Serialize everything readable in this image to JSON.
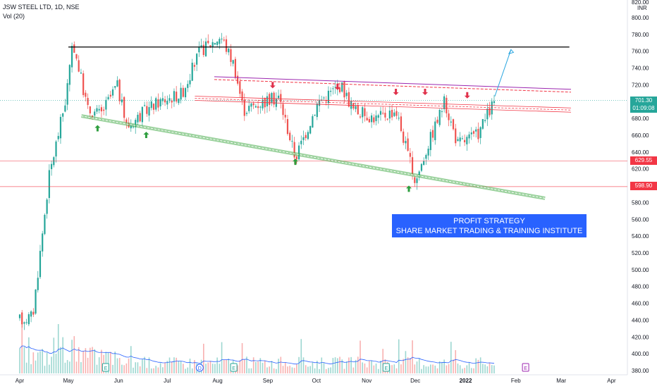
{
  "header": {
    "symbol_line": "JSW STEEL LTD, 1D, NSE",
    "vol_line": "Vol (20)"
  },
  "currency": "INR",
  "banner": {
    "line1": "PROFIT STRATEGY",
    "line2": "SHARE MARKET TRADING & TRAINING INSTITUTE"
  },
  "price_labels": {
    "last": "701.30",
    "countdown": "01:09:08",
    "level_1": "629.55",
    "level_2": "598.90"
  },
  "colors": {
    "up": "#26a69a",
    "down": "#ef5350",
    "resistance": "#000000",
    "channel_top": "#9c27b0",
    "support_line": "#4caf50",
    "level": "#f23645",
    "projection": "#2aa6e0",
    "banner": "#2962ff"
  },
  "chart_data": {
    "type": "candlestick",
    "y_axis": {
      "ticks": [
        380,
        400,
        420,
        440,
        460,
        480,
        500,
        520,
        540,
        560,
        580,
        600,
        620,
        640,
        660,
        680,
        700,
        720,
        740,
        760,
        780,
        800
      ],
      "top_label": "820.00",
      "ylim": [
        373,
        823
      ]
    },
    "x_axis": {
      "ticks": [
        {
          "label": "Apr",
          "day": 0
        },
        {
          "label": "May",
          "day": 30
        },
        {
          "label": "Jun",
          "day": 61
        },
        {
          "label": "Jul",
          "day": 91
        },
        {
          "label": "Aug",
          "day": 122
        },
        {
          "label": "Sep",
          "day": 153
        },
        {
          "label": "Oct",
          "day": 183
        },
        {
          "label": "Nov",
          "day": 214
        },
        {
          "label": "Dec",
          "day": 244
        },
        {
          "label": "2022",
          "day": 275
        },
        {
          "label": "Feb",
          "day": 306
        },
        {
          "label": "Mar",
          "day": 334
        },
        {
          "label": "Apr",
          "day": 365
        }
      ]
    },
    "key_points": [
      {
        "label": "start",
        "price": 440
      },
      {
        "label": "May high",
        "price": 770
      },
      {
        "label": "Aug high",
        "price": 778
      },
      {
        "label": "Sep low",
        "price": 633
      },
      {
        "label": "Dec low",
        "price": 604
      },
      {
        "label": "last",
        "price": 701.3
      }
    ],
    "horizontal_levels": [
      629.55,
      598.9,
      765
    ],
    "trendlines": [
      {
        "name": "resistance",
        "from": {
          "day": 30,
          "price": 765
        },
        "to": {
          "day": 339,
          "price": 765
        }
      },
      {
        "name": "upper channel",
        "from": {
          "day": 120,
          "price": 728
        },
        "to": {
          "day": 340,
          "price": 713
        }
      },
      {
        "name": "middle channel",
        "from": {
          "day": 108,
          "price": 704
        },
        "to": {
          "day": 340,
          "price": 690
        }
      },
      {
        "name": "lower support",
        "from": {
          "day": 38,
          "price": 683
        },
        "to": {
          "day": 324,
          "price": 585
        }
      }
    ],
    "volume_events": [
      {
        "day": 53,
        "label": "E"
      },
      {
        "day": 111,
        "label": "D"
      },
      {
        "day": 132,
        "label": "E"
      },
      {
        "day": 226,
        "label": "E"
      },
      {
        "day": 312,
        "label": "E"
      }
    ]
  }
}
